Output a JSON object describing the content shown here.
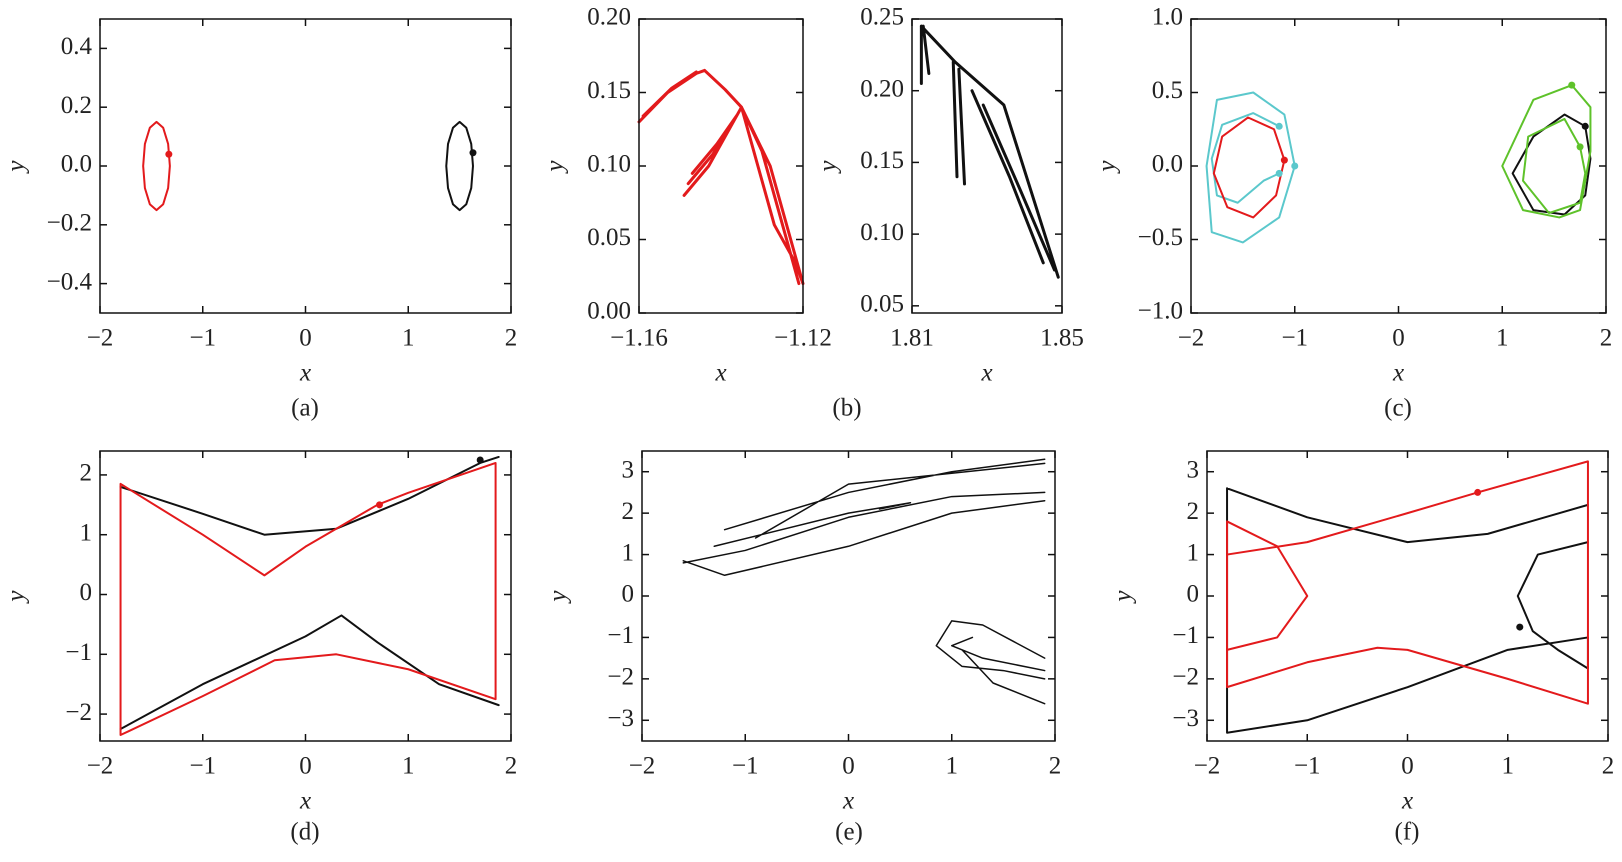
{
  "chart_data": [
    {
      "type": "line",
      "caption": "(a)",
      "xlabel": "x",
      "ylabel": "y",
      "xlim": [
        -2,
        2
      ],
      "xticks": [
        {
          "value": -2,
          "label": "−2"
        },
        {
          "value": -1,
          "label": "−1"
        },
        0,
        1,
        2
      ],
      "ylim": [
        -0.5,
        0.5
      ],
      "yticks": [
        {
          "value": -0.4,
          "label": "−0.4"
        },
        {
          "value": -0.2,
          "label": "−0.2"
        },
        {
          "value": 0,
          "label": "0.0"
        },
        0.2,
        0.4
      ],
      "series": [
        {
          "color": "#e31a1c",
          "x": [
            -1.32,
            -1.337,
            -1.385,
            -1.45,
            -1.515,
            -1.563,
            -1.58,
            -1.563,
            -1.515,
            -1.45,
            -1.385,
            -1.337,
            -1.32
          ],
          "values": [
            0,
            0.075,
            0.13,
            0.15,
            0.13,
            0.075,
            0,
            -0.075,
            -0.13,
            -0.15,
            -0.13,
            -0.075,
            0
          ]
        },
        {
          "color": "#111111",
          "x": [
            1.63,
            1.613,
            1.565,
            1.5,
            1.435,
            1.387,
            1.37,
            1.387,
            1.435,
            1.5,
            1.565,
            1.613,
            1.63
          ],
          "values": [
            0,
            0.075,
            0.13,
            0.15,
            0.13,
            0.075,
            0,
            -0.075,
            -0.13,
            -0.15,
            -0.13,
            -0.075,
            0
          ]
        },
        {
          "color": "#e31a1c",
          "marker": true,
          "x": [
            -1.33
          ],
          "values": [
            0.04
          ]
        },
        {
          "color": "#111111",
          "marker": true,
          "x": [
            1.63
          ],
          "values": [
            0.045
          ]
        }
      ]
    },
    {
      "type": "line",
      "caption": "(b)",
      "xlabel": "x",
      "ylabel": "y",
      "xlim": [
        -1.16,
        -1.12
      ],
      "xticks": [
        {
          "value": -1.16,
          "label": "−1.16"
        },
        {
          "value": -1.12,
          "label": "−1.12"
        }
      ],
      "ylim": [
        0,
        0.2
      ],
      "yticks": [
        {
          "value": 0,
          "label": "0.00"
        },
        0.05,
        {
          "value": 0.1,
          "label": "0.10"
        },
        0.15,
        {
          "value": 0.2,
          "label": "0.20"
        }
      ],
      "series": [
        {
          "color": "#e31a1c",
          "width": 3,
          "x": [
            -1.16,
            -1.153,
            -1.146,
            -1.144,
            null,
            -1.159,
            -1.152,
            -1.146,
            null,
            -1.144,
            -1.139,
            -1.135,
            null,
            -1.149,
            -1.143,
            -1.138,
            -1.135,
            null,
            -1.148,
            -1.142,
            -1.137,
            null,
            -1.147,
            -1.141,
            -1.136,
            null,
            -1.135,
            -1.13,
            -1.125,
            -1.121,
            null,
            -1.135,
            -1.128,
            -1.123,
            -1.12,
            null,
            -1.135,
            -1.131,
            -1.127,
            -1.122,
            -1.12
          ],
          "values": [
            0.13,
            0.15,
            0.163,
            0.165,
            null,
            0.134,
            0.153,
            0.164,
            null,
            0.165,
            0.152,
            0.14,
            null,
            0.08,
            0.1,
            0.125,
            0.14,
            null,
            0.088,
            0.108,
            0.13,
            null,
            0.095,
            0.115,
            0.135,
            null,
            0.14,
            0.11,
            0.06,
            0.02,
            null,
            0.14,
            0.1,
            0.05,
            0.02,
            null,
            0.14,
            0.1,
            0.06,
            0.035,
            0.02
          ]
        }
      ]
    },
    {
      "type": "line",
      "xlabel": "x",
      "ylabel": "y",
      "xlim": [
        1.81,
        1.85
      ],
      "xticks": [
        1.81,
        1.85
      ],
      "ylim": [
        0.045,
        0.25
      ],
      "yticks": [
        0.05,
        {
          "value": 0.1,
          "label": "0.10"
        },
        0.15,
        {
          "value": 0.2,
          "label": "0.20"
        },
        0.25
      ],
      "series": [
        {
          "color": "#111111",
          "width": 3,
          "x": [
            1.8125,
            1.8125,
            null,
            1.813,
            1.8145,
            null,
            1.8125,
            1.8215,
            1.8345,
            1.849,
            null,
            1.821,
            1.822,
            null,
            1.8225,
            1.824,
            null,
            1.826,
            1.836,
            1.845,
            null,
            1.829,
            1.839,
            1.848
          ],
          "values": [
            0.245,
            0.205,
            null,
            0.245,
            0.212,
            null,
            0.245,
            0.22,
            0.19,
            0.07,
            null,
            0.22,
            0.14,
            null,
            0.215,
            0.135,
            null,
            0.2,
            0.14,
            0.08,
            null,
            0.19,
            0.13,
            0.075
          ]
        }
      ]
    },
    {
      "type": "line",
      "caption": "(c)",
      "xlabel": "x",
      "ylabel": "y",
      "xlim": [
        -2,
        2
      ],
      "xticks": [
        {
          "value": -2,
          "label": "−2"
        },
        {
          "value": -1,
          "label": "−1"
        },
        0,
        1,
        2
      ],
      "ylim": [
        -1,
        1
      ],
      "yticks": [
        {
          "value": -1,
          "label": "−1.0"
        },
        {
          "value": -0.5,
          "label": "−0.5"
        },
        {
          "value": 0,
          "label": "0.0"
        },
        0.5,
        {
          "value": 1,
          "label": "1.0"
        }
      ],
      "series": [
        {
          "color": "#5bc8cc",
          "x": [
            -1.0,
            -1.1,
            -1.4,
            -1.75,
            -1.85,
            -1.8,
            -1.5,
            -1.15,
            -1.0
          ],
          "values": [
            0,
            0.35,
            0.5,
            0.45,
            0,
            -0.45,
            -0.52,
            -0.35,
            0
          ]
        },
        {
          "color": "#5bc8cc",
          "x": [
            -1.15,
            -1.4,
            -1.7,
            -1.8,
            -1.75,
            -1.55,
            -1.3,
            -1.15
          ],
          "values": [
            0.27,
            0.36,
            0.28,
            0.05,
            -0.2,
            -0.25,
            -0.1,
            -0.05
          ]
        },
        {
          "color": "#e31a1c",
          "x": [
            -1.1,
            -1.2,
            -1.45,
            -1.7,
            -1.78,
            -1.65,
            -1.4,
            -1.18,
            -1.1
          ],
          "values": [
            0.04,
            0.25,
            0.33,
            0.2,
            -0.05,
            -0.28,
            -0.35,
            -0.2,
            0.04
          ]
        },
        {
          "color": "#111111",
          "x": [
            1.8,
            1.6,
            1.3,
            1.1,
            1.3,
            1.6,
            1.8,
            1.85,
            1.8
          ],
          "values": [
            0.27,
            0.35,
            0.2,
            -0.05,
            -0.3,
            -0.33,
            -0.2,
            0.05,
            0.27
          ]
        },
        {
          "color": "#5ec22a",
          "x": [
            1.67,
            1.3,
            1.0,
            1.2,
            1.55,
            1.75,
            1.85,
            1.85,
            1.67
          ],
          "values": [
            0.55,
            0.45,
            0,
            -0.3,
            -0.35,
            -0.3,
            0.1,
            0.4,
            0.55
          ]
        },
        {
          "color": "#5ec22a",
          "x": [
            1.75,
            1.6,
            1.25,
            1.2,
            1.45,
            1.75,
            1.8,
            1.75
          ],
          "values": [
            0.13,
            0.32,
            0.2,
            -0.1,
            -0.32,
            -0.25,
            -0.05,
            0.13
          ]
        },
        {
          "color": "#5bc8cc",
          "marker": true,
          "x": [
            -1.15,
            -1.0,
            -1.15
          ],
          "values": [
            0.27,
            0,
            -0.05
          ]
        },
        {
          "color": "#e31a1c",
          "marker": true,
          "x": [
            -1.1
          ],
          "values": [
            0.04
          ]
        },
        {
          "color": "#111111",
          "marker": true,
          "x": [
            1.8
          ],
          "values": [
            0.27
          ]
        },
        {
          "color": "#5ec22a",
          "marker": true,
          "x": [
            1.67,
            1.75
          ],
          "values": [
            0.55,
            0.13
          ]
        }
      ]
    },
    {
      "type": "line",
      "caption": "(d)",
      "xlabel": "x",
      "ylabel": "y",
      "xlim": [
        -2,
        2
      ],
      "xticks": [
        {
          "value": -2,
          "label": "−2"
        },
        {
          "value": -1,
          "label": "−1"
        },
        0,
        1,
        2
      ],
      "ylim": [
        -2.45,
        2.4
      ],
      "yticks": [
        {
          "value": -2,
          "label": "−2"
        },
        {
          "value": -1,
          "label": "−1"
        },
        0,
        1,
        2
      ],
      "series": [
        {
          "color": "#111111",
          "x": [
            -1.8,
            -1,
            -0.4,
            0.3,
            1,
            1.7,
            1.88,
            null,
            -1.8,
            -1,
            0,
            0.35,
            0.7,
            1.3,
            1.88
          ],
          "values": [
            1.8,
            1.35,
            1.0,
            1.1,
            1.6,
            2.2,
            2.3,
            null,
            -2.25,
            -1.5,
            -0.7,
            -0.35,
            -0.8,
            -1.5,
            -1.85
          ]
        },
        {
          "color": "#e31a1c",
          "x": [
            -1.8,
            -1.8,
            -1,
            -0.3,
            0.3,
            1,
            1.85,
            1.85,
            1,
            0.7,
            0,
            -0.4,
            -1,
            -1.8
          ],
          "values": [
            1.85,
            -2.35,
            -1.7,
            -1.1,
            -1.0,
            -1.25,
            -1.75,
            2.2,
            1.7,
            1.5,
            0.8,
            0.32,
            1.0,
            1.85
          ]
        },
        {
          "color": "#111111",
          "marker": true,
          "x": [
            1.7
          ],
          "values": [
            2.25
          ]
        },
        {
          "color": "#e31a1c",
          "marker": true,
          "x": [
            0.72
          ],
          "values": [
            1.5
          ]
        }
      ]
    },
    {
      "type": "line",
      "caption": "(e)",
      "xlabel": "x",
      "ylabel": "y",
      "xlim": [
        -2,
        2
      ],
      "xticks": [
        {
          "value": -2,
          "label": "−2"
        },
        {
          "value": -1,
          "label": "−1"
        },
        0,
        1,
        2
      ],
      "ylim": [
        -3.5,
        3.5
      ],
      "yticks": [
        {
          "value": -3,
          "label": "−3"
        },
        {
          "value": -2,
          "label": "−2"
        },
        {
          "value": -1,
          "label": "−1"
        },
        0,
        1,
        2,
        3
      ],
      "series": [
        {
          "color": "#111111",
          "width": 1.5,
          "x": [
            -1.6,
            -1,
            0,
            1,
            1.9,
            null,
            -1.6,
            -1.2,
            0,
            1,
            1.9,
            null,
            -1.2,
            0,
            1,
            1.9,
            null,
            -1.3,
            0,
            0.6,
            0.3,
            null,
            -0.9,
            0,
            1.9,
            null,
            1.0,
            0.85,
            1.1,
            1.5,
            1.9,
            null,
            1.0,
            1.3,
            1.6,
            1.9,
            null,
            1.1,
            1.4,
            1.9,
            null,
            1.2,
            1.0,
            1.3,
            1.9
          ],
          "values": [
            0.8,
            1.1,
            1.9,
            2.4,
            2.5,
            null,
            0.85,
            0.5,
            1.2,
            2.0,
            2.3,
            null,
            1.6,
            2.5,
            3.0,
            3.3,
            null,
            1.2,
            2.0,
            2.25,
            2.1,
            null,
            1.4,
            2.7,
            3.2,
            null,
            -0.6,
            -1.2,
            -1.7,
            -1.8,
            -2.0,
            null,
            -0.6,
            -0.7,
            -1.1,
            -1.5,
            null,
            -1.3,
            -2.1,
            -2.6,
            null,
            -1.0,
            -1.2,
            -1.5,
            -1.8
          ]
        }
      ]
    },
    {
      "type": "line",
      "caption": "(f)",
      "xlabel": "x",
      "ylabel": "y",
      "xlim": [
        -2,
        2
      ],
      "xticks": [
        {
          "value": -2,
          "label": "−2"
        },
        {
          "value": -1,
          "label": "−1"
        },
        0,
        1,
        2
      ],
      "ylim": [
        -3.5,
        3.5
      ],
      "yticks": [
        {
          "value": -3,
          "label": "−3"
        },
        {
          "value": -2,
          "label": "−2"
        },
        {
          "value": -1,
          "label": "−1"
        },
        0,
        1,
        2,
        3
      ],
      "series": [
        {
          "color": "#111111",
          "x": [
            -1.8,
            -1,
            0,
            0.8,
            1.8,
            null,
            -1.8,
            -1.8,
            -1,
            0,
            1,
            1.8,
            null,
            1.8,
            1.3,
            1.1,
            1.25,
            1.5,
            1.8,
            1.8
          ],
          "values": [
            2.6,
            1.9,
            1.3,
            1.5,
            2.2,
            null,
            2.6,
            -3.3,
            -3.0,
            -2.2,
            -1.3,
            -1.0,
            null,
            1.3,
            1.0,
            0,
            -0.85,
            -1.3,
            -1.75,
            -1.0
          ]
        },
        {
          "color": "#e31a1c",
          "x": [
            -1.8,
            -1,
            0,
            0.7,
            1.8,
            1.8,
            1,
            0,
            -0.3,
            -1,
            -1.8,
            -1.8,
            null,
            -1.8,
            -1.3,
            -1,
            -1.3,
            -1.8
          ],
          "values": [
            1.0,
            1.3,
            2.0,
            2.5,
            3.25,
            -2.6,
            -2.0,
            -1.3,
            -1.25,
            -1.6,
            -2.2,
            1.8,
            null,
            1.8,
            1.2,
            0,
            -1.0,
            -1.3
          ]
        },
        {
          "color": "#111111",
          "marker": true,
          "x": [
            1.12
          ],
          "values": [
            -0.75
          ]
        },
        {
          "color": "#e31a1c",
          "marker": true,
          "x": [
            0.7
          ],
          "values": [
            2.5
          ]
        }
      ]
    }
  ]
}
